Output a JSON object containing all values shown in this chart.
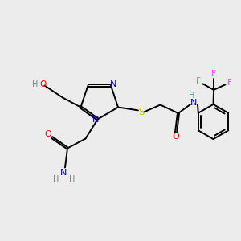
{
  "bg_color": "#ececec",
  "atom_colors": {
    "C": "#000000",
    "N": "#0000cc",
    "O": "#ff0000",
    "S": "#cccc00",
    "F": "#ff44ff",
    "H_gray": "#5a8a8a"
  },
  "bond_color": "#000000",
  "bond_width": 1.4,
  "figsize": [
    3.0,
    3.0
  ],
  "dpi": 100,
  "xlim": [
    0,
    10
  ],
  "ylim": [
    0,
    10
  ]
}
